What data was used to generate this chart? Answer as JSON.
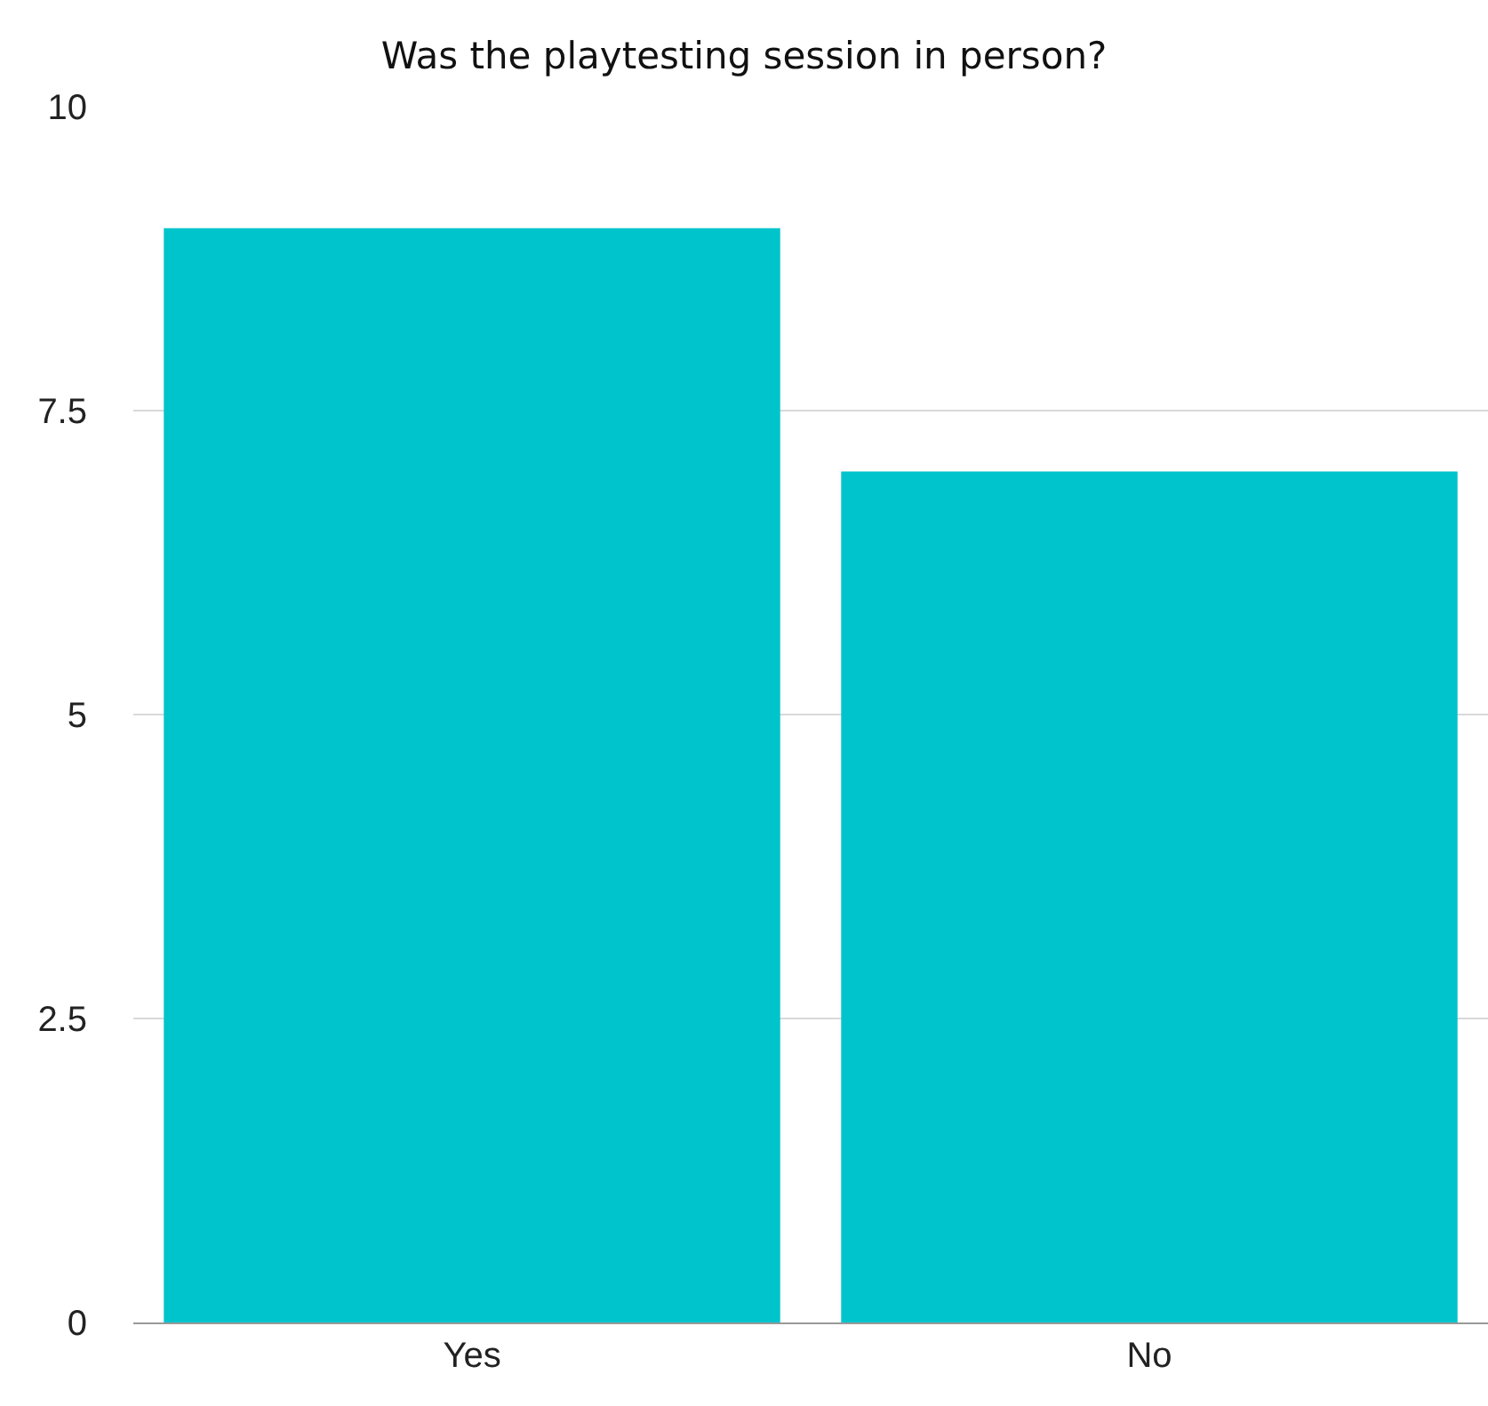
{
  "chart_data": {
    "type": "bar",
    "title": "Was the playtesting session in person?",
    "categories": [
      "Yes",
      "No"
    ],
    "values": [
      9,
      7
    ],
    "color": "#00c4cc",
    "ylim": [
      0,
      10
    ],
    "yticks": [
      0,
      2.5,
      5,
      7.5,
      10
    ],
    "grid": "y",
    "legend": false
  }
}
